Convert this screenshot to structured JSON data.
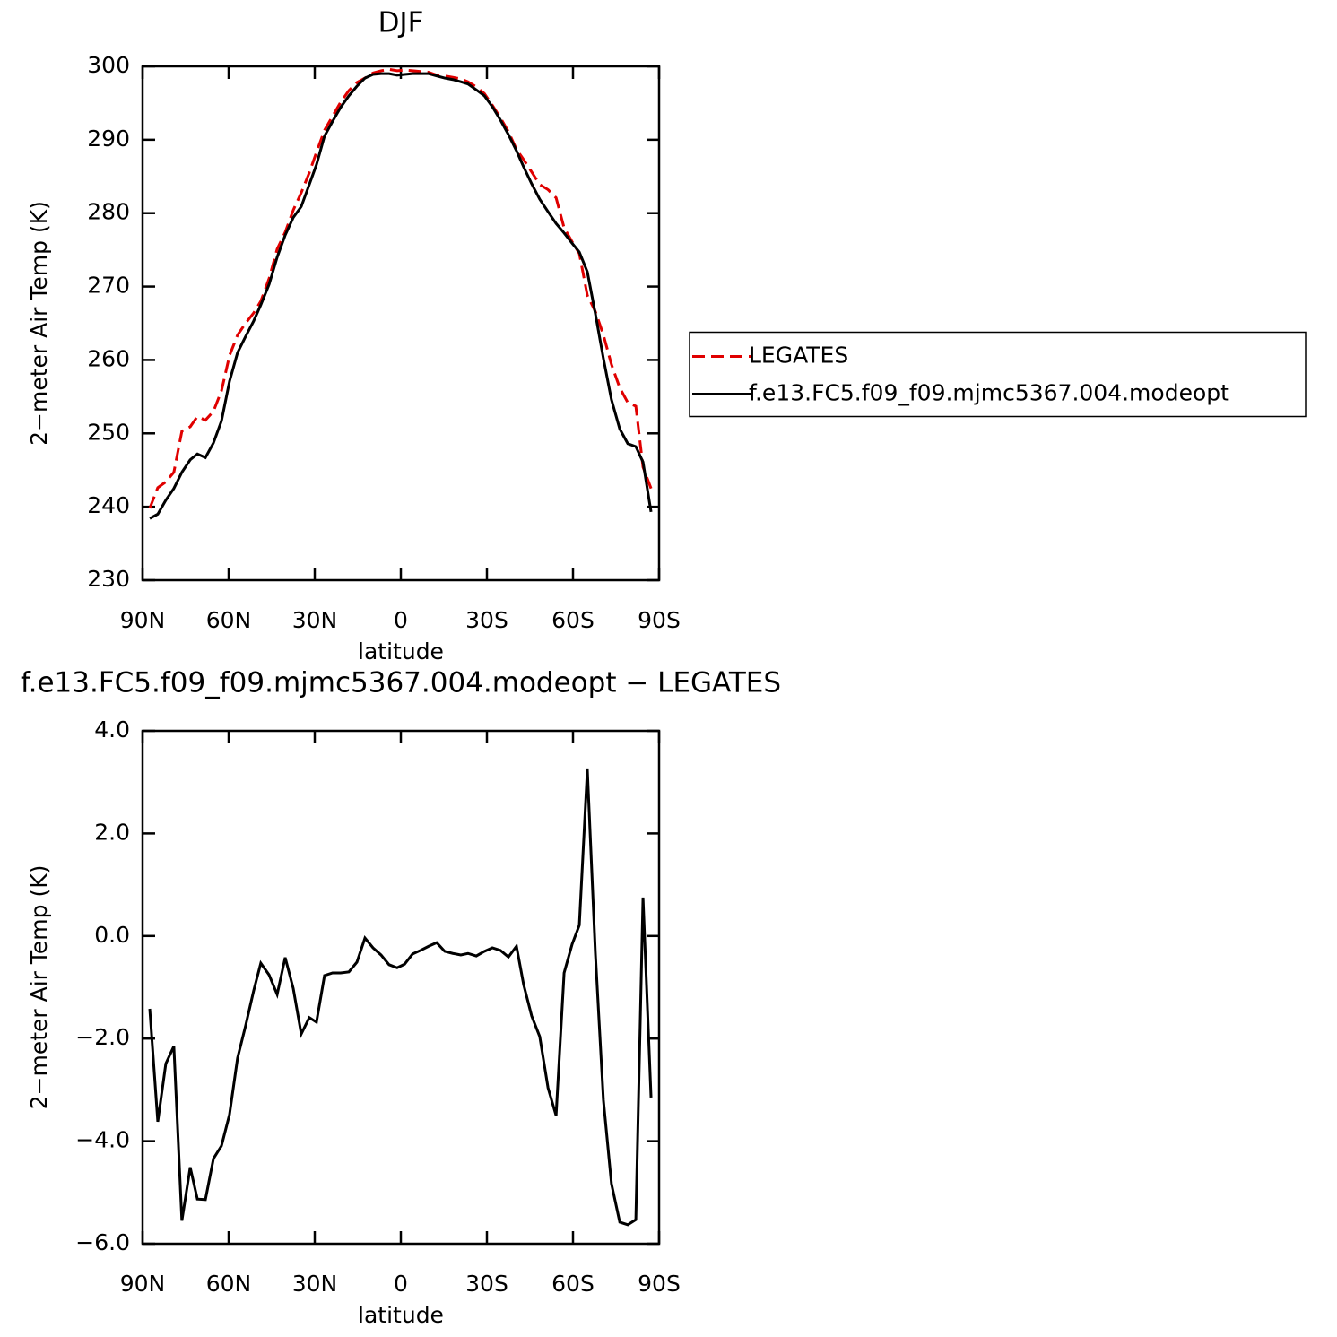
{
  "chart_data": [
    {
      "type": "line",
      "title": "DJF",
      "x_label": "latitude",
      "y_label": "2−meter Air Temp (K)",
      "xlim": [
        90,
        -90
      ],
      "ylim": [
        230,
        300
      ],
      "xticks": [
        {
          "value": 90,
          "label": "90N"
        },
        {
          "value": 60,
          "label": "60N"
        },
        {
          "value": 30,
          "label": "30N"
        },
        0,
        {
          "value": -30,
          "label": "30S"
        },
        {
          "value": -60,
          "label": "60S"
        },
        {
          "value": -90,
          "label": "90S"
        }
      ],
      "yticks": [
        230,
        240,
        250,
        260,
        270,
        280,
        290,
        300
      ],
      "legend": "right",
      "x": [
        87.5,
        84.7,
        81.9,
        79.1,
        76.3,
        73.4,
        70.9,
        68.1,
        65.3,
        62.5,
        59.7,
        56.9,
        54.1,
        51.3,
        48.8,
        45.9,
        43.1,
        40.3,
        37.5,
        34.7,
        31.9,
        29.4,
        26.6,
        23.8,
        21.0,
        18.1,
        15.3,
        12.5,
        9.7,
        6.9,
        4.1,
        1.3,
        -1.3,
        -4.1,
        -6.9,
        -9.7,
        -12.5,
        -15.3,
        -18.1,
        -20.9,
        -23.4,
        -26.3,
        -29.1,
        -31.9,
        -34.7,
        -37.5,
        -40.3,
        -42.8,
        -45.6,
        -48.4,
        -51.3,
        -54.1,
        -56.9,
        -59.7,
        -62.2,
        -65.0,
        -67.8,
        -70.6,
        -73.4,
        -76.3,
        -79.1,
        -81.9,
        -84.4,
        -87.2
      ],
      "series": [
        {
          "name": "LEGATES",
          "color": "#e00000",
          "style": "dashed",
          "values": [
            239.8,
            242.6,
            243.4,
            244.7,
            250.3,
            250.9,
            252.3,
            251.8,
            253.0,
            255.8,
            260.6,
            263.4,
            265.0,
            266.4,
            268.0,
            271.1,
            275.1,
            277.4,
            280.4,
            282.8,
            285.5,
            288.3,
            291.3,
            293.2,
            295.1,
            296.7,
            297.8,
            298.4,
            299.1,
            299.4,
            299.6,
            299.4,
            299.5,
            299.4,
            299.3,
            299.2,
            298.8,
            298.7,
            298.5,
            298.3,
            297.9,
            297.2,
            296.3,
            294.7,
            293.0,
            291.1,
            288.7,
            287.3,
            285.6,
            283.9,
            283.2,
            282.1,
            278.0,
            276.1,
            274.5,
            268.8,
            266.6,
            263.4,
            259.4,
            256.2,
            254.2,
            253.7,
            245.4,
            242.5
          ]
        },
        {
          "name": "f.e13.FC5.f09_f09.mjmc5367.004.modeopt",
          "color": "#000000",
          "style": "solid",
          "values": [
            238.4,
            239.0,
            240.9,
            242.5,
            244.7,
            246.4,
            247.2,
            246.7,
            248.7,
            251.7,
            257.1,
            261.0,
            263.2,
            265.3,
            267.5,
            270.3,
            274.0,
            277.0,
            279.4,
            280.9,
            283.9,
            286.6,
            290.5,
            292.5,
            294.4,
            296.0,
            297.3,
            298.4,
            298.9,
            299.0,
            299.0,
            298.8,
            298.9,
            299.0,
            299.0,
            299.0,
            298.7,
            298.4,
            298.2,
            297.9,
            297.6,
            296.8,
            296.0,
            294.5,
            292.7,
            290.7,
            288.5,
            286.3,
            284.0,
            281.9,
            280.2,
            278.6,
            277.3,
            275.9,
            274.7,
            272.0,
            266.3,
            260.2,
            254.6,
            250.6,
            248.6,
            248.2,
            246.1,
            239.3
          ]
        }
      ]
    },
    {
      "type": "line",
      "title": "f.e13.FC5.f09_f09.mjmc5367.004.modeopt − LEGATES",
      "x_label": "latitude",
      "y_label": "2−meter Air Temp (K)",
      "xlim": [
        90,
        -90
      ],
      "ylim": [
        -6,
        4
      ],
      "xticks": [
        {
          "value": 90,
          "label": "90N"
        },
        {
          "value": 60,
          "label": "60N"
        },
        {
          "value": 30,
          "label": "30N"
        },
        0,
        {
          "value": -30,
          "label": "30S"
        },
        {
          "value": -60,
          "label": "60S"
        },
        {
          "value": -90,
          "label": "90S"
        }
      ],
      "yticks": [
        {
          "value": -6,
          "label": "−6.0"
        },
        {
          "value": -4,
          "label": "−4.0"
        },
        {
          "value": -2,
          "label": "−2.0"
        },
        {
          "value": 0,
          "label": "0.0"
        },
        {
          "value": 2,
          "label": "2.0"
        },
        {
          "value": 4,
          "label": "4.0"
        }
      ],
      "color": "#000000",
      "x": [
        87.5,
        84.7,
        81.9,
        79.1,
        76.3,
        73.4,
        70.9,
        68.1,
        65.3,
        62.5,
        59.7,
        56.9,
        54.1,
        51.3,
        48.8,
        45.9,
        43.1,
        40.3,
        37.5,
        34.7,
        31.9,
        29.4,
        26.6,
        23.8,
        21.0,
        18.1,
        15.3,
        12.5,
        9.7,
        6.9,
        4.1,
        1.3,
        -1.3,
        -4.1,
        -6.9,
        -9.7,
        -12.5,
        -15.3,
        -18.1,
        -20.9,
        -23.4,
        -26.3,
        -29.1,
        -31.9,
        -34.7,
        -37.5,
        -40.3,
        -42.8,
        -45.6,
        -48.4,
        -51.3,
        -54.1,
        -56.9,
        -59.7,
        -62.2,
        -65.0,
        -67.8,
        -70.6,
        -73.4,
        -76.3,
        -79.1,
        -81.9,
        -84.4,
        -87.2
      ],
      "values": [
        -1.42,
        -3.62,
        -2.49,
        -2.15,
        -5.55,
        -4.51,
        -5.13,
        -5.14,
        -4.34,
        -4.09,
        -3.48,
        -2.38,
        -1.75,
        -1.07,
        -0.53,
        -0.76,
        -1.14,
        -0.42,
        -1.02,
        -1.91,
        -1.59,
        -1.68,
        -0.77,
        -0.72,
        -0.72,
        -0.7,
        -0.51,
        -0.04,
        -0.23,
        -0.37,
        -0.56,
        -0.62,
        -0.55,
        -0.35,
        -0.28,
        -0.2,
        -0.13,
        -0.3,
        -0.34,
        -0.37,
        -0.34,
        -0.39,
        -0.3,
        -0.23,
        -0.28,
        -0.41,
        -0.2,
        -0.95,
        -1.56,
        -1.96,
        -2.96,
        -3.5,
        -0.72,
        -0.16,
        0.21,
        3.25,
        -0.34,
        -3.2,
        -4.83,
        -5.58,
        -5.63,
        -5.53,
        0.75,
        -3.15
      ]
    }
  ]
}
